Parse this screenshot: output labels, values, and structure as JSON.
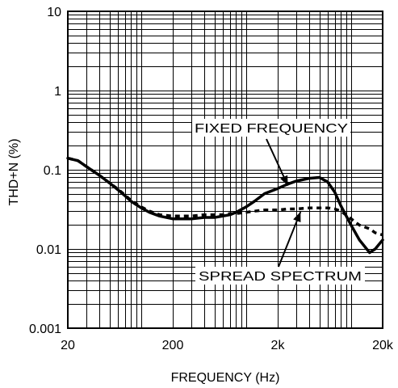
{
  "chart_data": {
    "type": "line",
    "title": "",
    "xlabel": "FREQUENCY (Hz)",
    "ylabel": "THD+N (%)",
    "x_scale": "log",
    "y_scale": "log",
    "xlim": [
      20,
      20000
    ],
    "ylim": [
      0.001,
      10
    ],
    "grid": true,
    "legend": "none",
    "x_ticks": [
      {
        "value": 20,
        "label": "20"
      },
      {
        "value": 200,
        "label": "200"
      },
      {
        "value": 2000,
        "label": "2k"
      },
      {
        "value": 20000,
        "label": "20k"
      }
    ],
    "y_ticks": [
      {
        "value": 10,
        "label": "10"
      },
      {
        "value": 1,
        "label": "1"
      },
      {
        "value": 0.1,
        "label": "0.1"
      },
      {
        "value": 0.01,
        "label": "0.01"
      },
      {
        "value": 0.001,
        "label": "0.001"
      }
    ],
    "series": [
      {
        "name": "FIXED FREQUENCY",
        "style": "solid",
        "x": [
          20,
          25,
          30,
          40,
          50,
          60,
          70,
          80,
          100,
          120,
          150,
          200,
          250,
          300,
          400,
          500,
          600,
          700,
          800,
          1000,
          1200,
          1500,
          2000,
          2500,
          3000,
          4000,
          5000,
          6000,
          7000,
          8000,
          10000,
          12000,
          15000,
          17000,
          20000
        ],
        "y": [
          0.14,
          0.13,
          0.11,
          0.085,
          0.068,
          0.056,
          0.047,
          0.04,
          0.033,
          0.029,
          0.026,
          0.024,
          0.024,
          0.024,
          0.025,
          0.025,
          0.026,
          0.027,
          0.029,
          0.034,
          0.04,
          0.05,
          0.058,
          0.066,
          0.072,
          0.078,
          0.08,
          0.07,
          0.052,
          0.035,
          0.02,
          0.013,
          0.009,
          0.01,
          0.013
        ]
      },
      {
        "name": "SPREAD SPECTRUM",
        "style": "dashed",
        "x": [
          20,
          25,
          30,
          40,
          50,
          60,
          70,
          80,
          100,
          120,
          150,
          200,
          250,
          300,
          400,
          500,
          600,
          700,
          800,
          1000,
          1200,
          1500,
          2000,
          2500,
          3000,
          4000,
          5000,
          6000,
          7000,
          8000,
          10000,
          12000,
          15000,
          17000,
          20000
        ],
        "y": [
          0.14,
          0.13,
          0.11,
          0.085,
          0.068,
          0.057,
          0.048,
          0.041,
          0.034,
          0.03,
          0.027,
          0.026,
          0.026,
          0.026,
          0.027,
          0.027,
          0.027,
          0.028,
          0.028,
          0.029,
          0.03,
          0.031,
          0.031,
          0.032,
          0.032,
          0.033,
          0.033,
          0.033,
          0.032,
          0.03,
          0.024,
          0.02,
          0.018,
          0.016,
          0.015
        ]
      }
    ],
    "annotations": [
      {
        "text": "FIXED FREQUENCY",
        "points_to_series": "FIXED FREQUENCY"
      },
      {
        "text": "SPREAD SPECTRUM",
        "points_to_series": "SPREAD SPECTRUM"
      }
    ]
  }
}
